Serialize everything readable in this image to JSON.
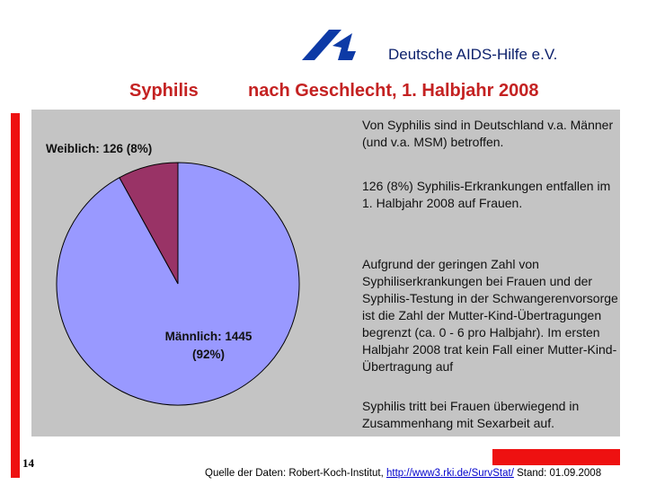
{
  "header": {
    "org_name": "Deutsche AIDS-Hilfe e.V.",
    "title_left": "Syphilis",
    "title_right": "nach Geschlecht, 1. Halbjahr 2008"
  },
  "chart_data": {
    "type": "pie",
    "title": "Syphilis nach Geschlecht, 1. Halbjahr 2008",
    "categories": [
      "Weiblich",
      "Männlich"
    ],
    "values": [
      126,
      1445
    ],
    "percents": [
      8,
      92
    ],
    "colors": [
      "#993366",
      "#9999ff"
    ],
    "labels": {
      "female": "Weiblich: 126 (8%)",
      "male_line1": "Männlich: 1445",
      "male_line2": "(92%)"
    }
  },
  "text": {
    "para1": "Von Syphilis sind in Deutschland v.a. Männer (und v.a. MSM) betroffen.",
    "para2": "126 (8%) Syphilis-Erkrankungen entfallen im 1. Halbjahr 2008 auf Frauen.",
    "para3": "Aufgrund der geringen Zahl von Syphiliserkrankungen bei Frauen und der Syphilis-Testung in der Schwangerenvorsorge ist die Zahl der Mutter-Kind-Übertragungen begrenzt (ca. 0 - 6 pro Halbjahr). Im ersten Halbjahr 2008 trat kein Fall einer Mutter-Kind-Übertragung auf",
    "para4": "Syphilis tritt bei Frauen überwiegend in Zusammenhang mit Sexarbeit auf."
  },
  "footer": {
    "page_number": "14",
    "source_prefix": "Quelle der Daten: Robert-Koch-Institut,",
    "source_link": "http://www3.rki.de/SurvStat/",
    "source_suffix": "Stand: 01.09.2008"
  },
  "colors": {
    "accent_red": "#ee1111",
    "title_red": "#c42222",
    "panel_gray": "#c4c4c4",
    "org_blue": "#0b1f6b"
  }
}
